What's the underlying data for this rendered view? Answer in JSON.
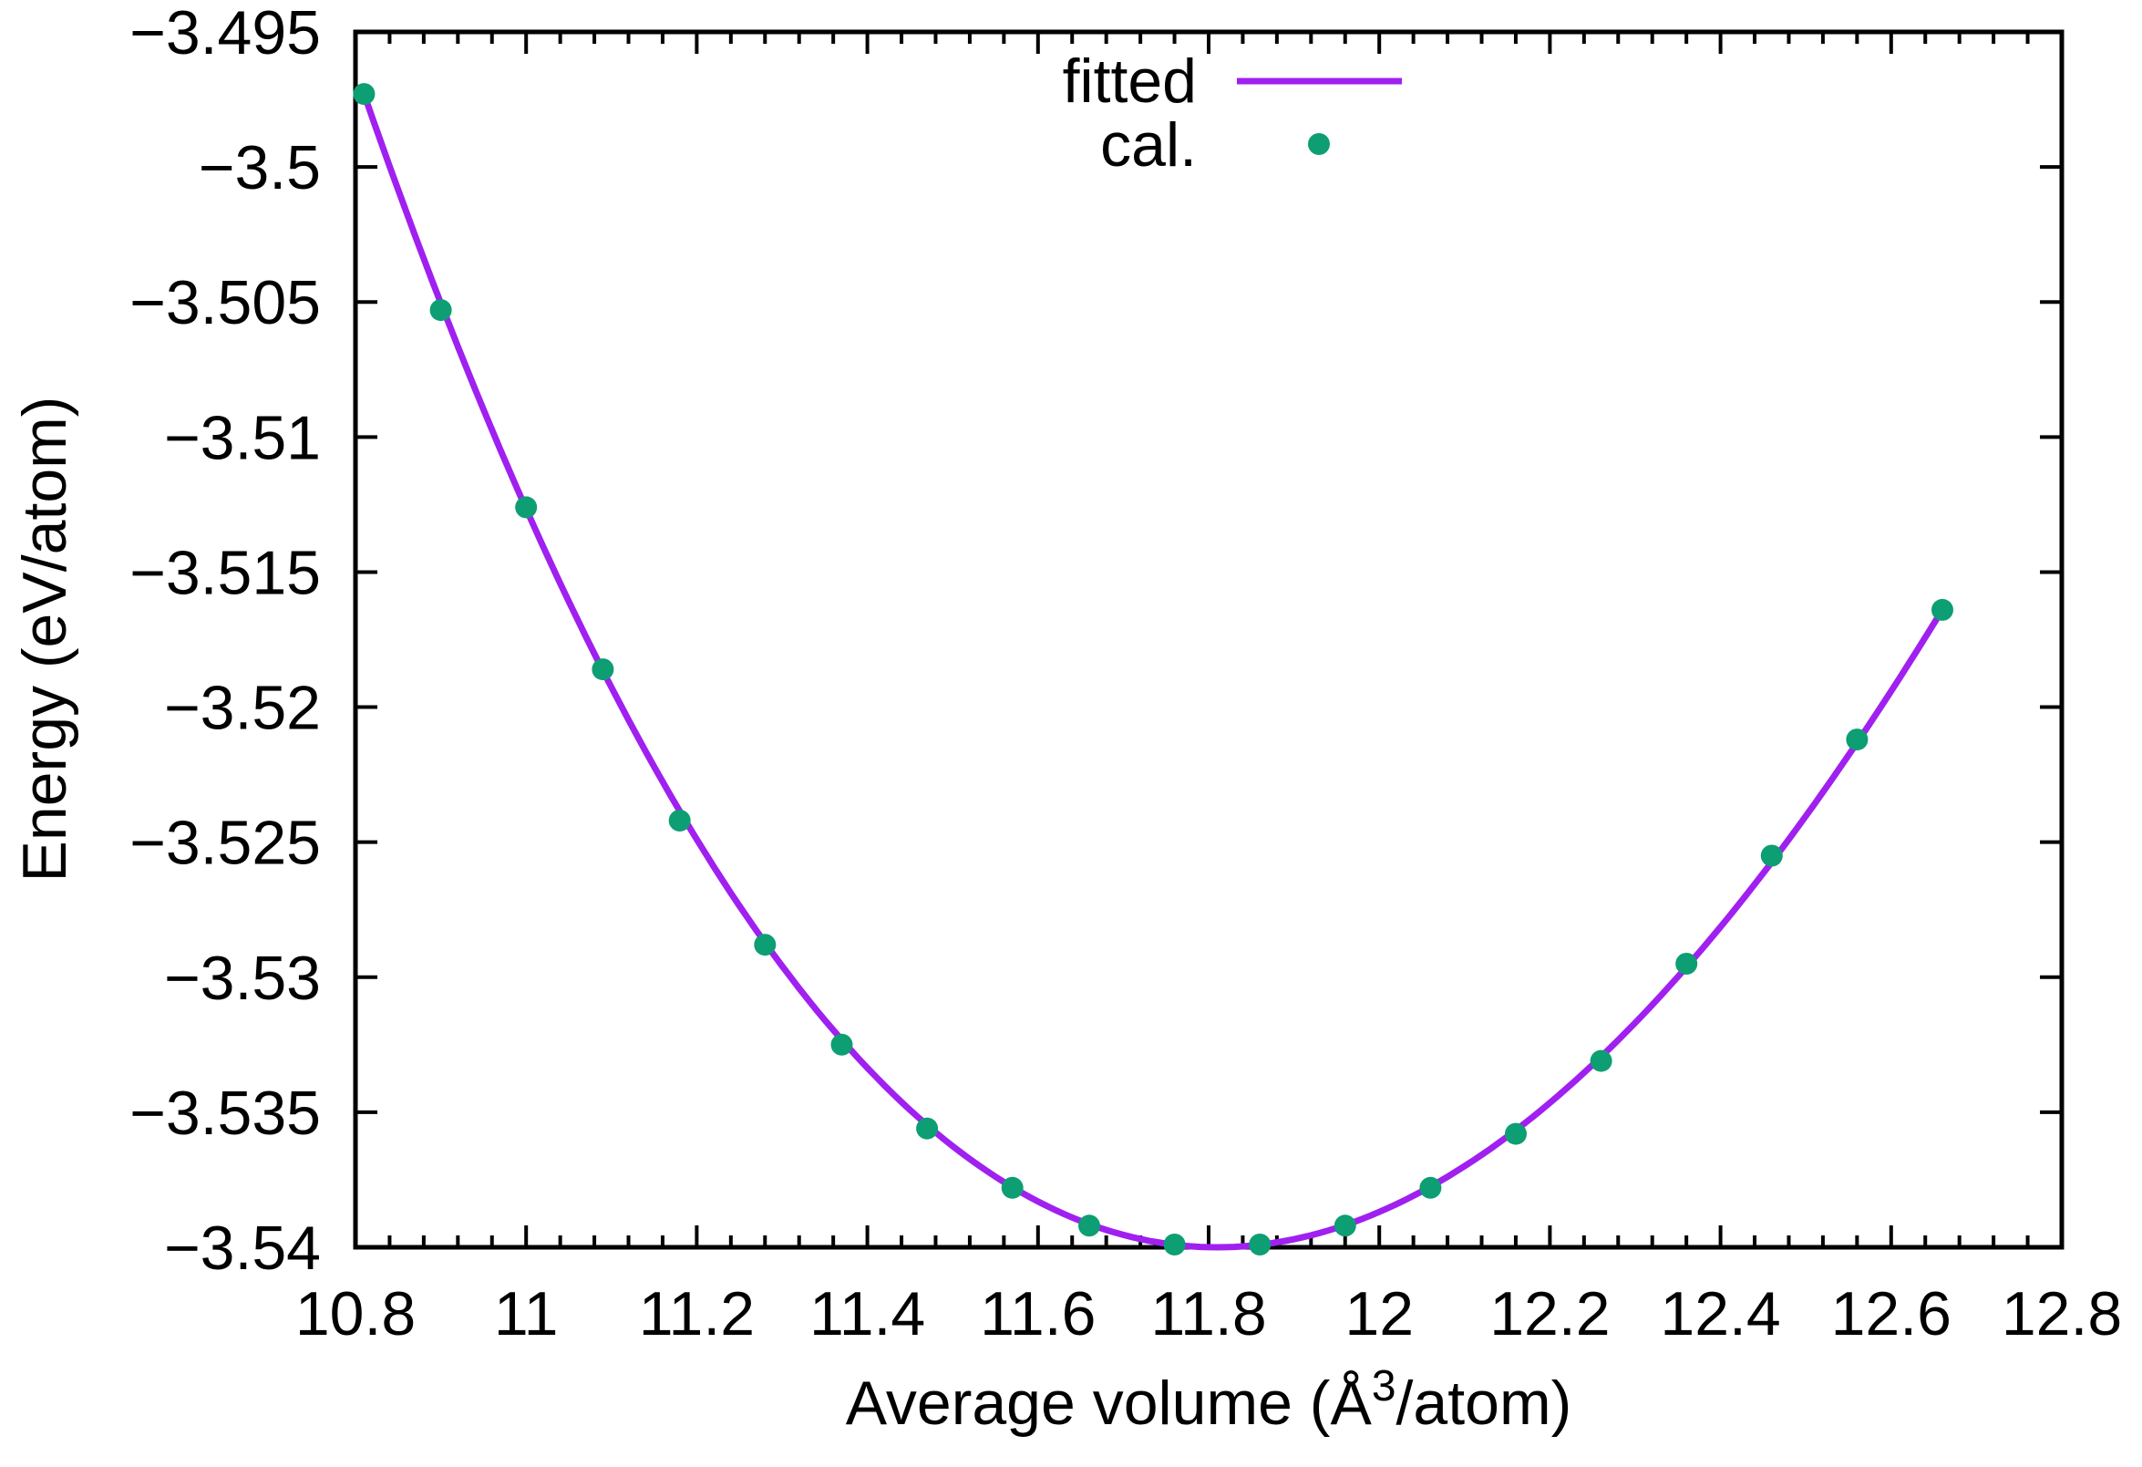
{
  "chart_data": {
    "type": "line-scatter",
    "title": "",
    "xlabel": "Average volume (Å3/atom)",
    "xlabel_parts": {
      "prefix": "Average volume (Å",
      "superscript": "3",
      "suffix": "/atom)"
    },
    "ylabel": "Energy (eV/atom)",
    "xlim": [
      10.8,
      12.8
    ],
    "ylim": [
      -3.54,
      -3.495
    ],
    "grid": false,
    "x_major_ticks": [
      10.8,
      11,
      11.2,
      11.4,
      11.6,
      11.8,
      12,
      12.2,
      12.4,
      12.6,
      12.8
    ],
    "x_tick_labels": [
      "10.8",
      "11",
      "11.2",
      "11.4",
      "11.6",
      "11.8",
      "12",
      "12.2",
      "12.4",
      "12.6",
      "12.8"
    ],
    "x_minor_step": 0.04,
    "y_major_ticks": [
      -3.495,
      -3.5,
      -3.505,
      -3.51,
      -3.515,
      -3.52,
      -3.525,
      -3.53,
      -3.535,
      -3.54
    ],
    "y_tick_labels": [
      "−3.495",
      "−3.5",
      "−3.505",
      "−3.51",
      "−3.515",
      "−3.52",
      "−3.525",
      "−3.53",
      "−3.535",
      "−3.54"
    ],
    "legend": {
      "position": "top-center",
      "entries": [
        {
          "label": "fitted",
          "marker": "line",
          "color": "#a020f0"
        },
        {
          "label": "cal.",
          "marker": "point",
          "color": "#0d9e73"
        }
      ]
    },
    "series": [
      {
        "name": "fitted",
        "type": "line",
        "color": "#a020f0",
        "model": "E(V) = E0 + k2*(V-V0)^2 + k3*(V-V0)^3",
        "params": {
          "E0": -3.54,
          "V0": 11.81,
          "k2": 0.03728,
          "k3": -0.005424
        },
        "x_range": [
          10.81,
          12.661
        ]
      },
      {
        "name": "cal.",
        "type": "scatter",
        "color": "#0d9e73",
        "points": [
          [
            10.81,
            -3.4973
          ],
          [
            10.9,
            -3.5053
          ],
          [
            11.0,
            -3.5126
          ],
          [
            11.09,
            -3.5186
          ],
          [
            11.18,
            -3.5242
          ],
          [
            11.28,
            -3.5288
          ],
          [
            11.37,
            -3.5325
          ],
          [
            11.47,
            -3.5356
          ],
          [
            11.57,
            -3.5378
          ],
          [
            11.66,
            -3.5392
          ],
          [
            11.76,
            -3.5399
          ],
          [
            11.86,
            -3.5399
          ],
          [
            11.96,
            -3.5392
          ],
          [
            12.06,
            -3.5378
          ],
          [
            12.16,
            -3.5358
          ],
          [
            12.26,
            -3.5331
          ],
          [
            12.36,
            -3.5295
          ],
          [
            12.46,
            -3.5255
          ],
          [
            12.56,
            -3.5212
          ],
          [
            12.66,
            -3.5164
          ]
        ]
      }
    ],
    "colors": {
      "fitted_line": "#a020f0",
      "cal_points": "#0d9e73",
      "axis": "#000000",
      "background": "#ffffff"
    }
  }
}
